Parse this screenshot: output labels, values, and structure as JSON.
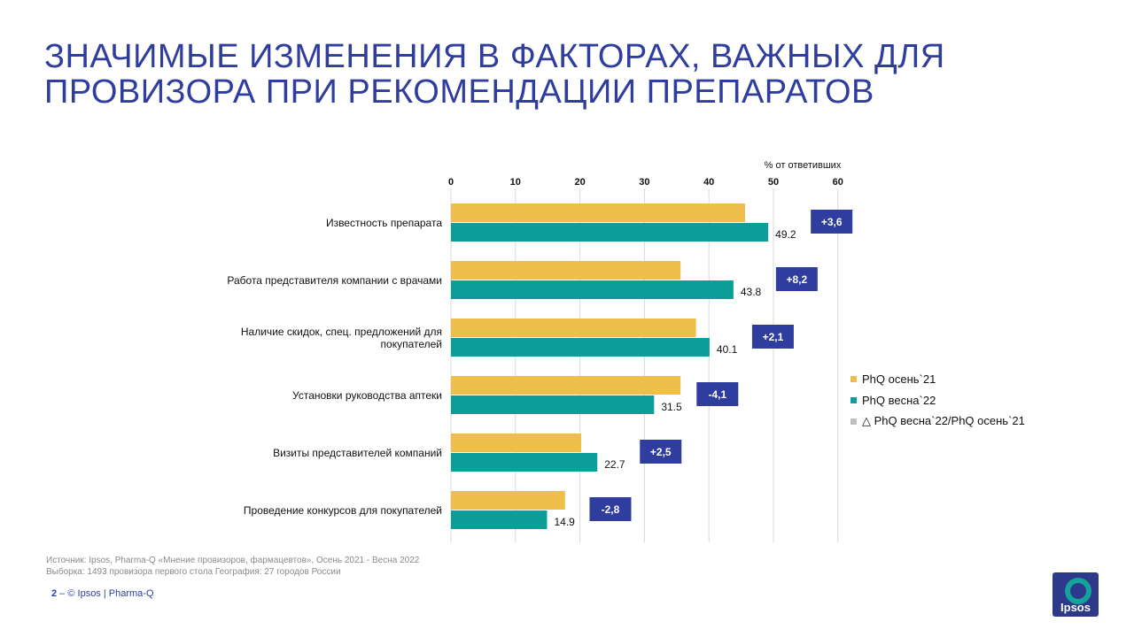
{
  "title_lines": [
    "ЗНАЧИМЫЕ ИЗМЕНЕНИЯ В ФАКТОРАХ, ВАЖНЫХ ДЛЯ",
    "ПРОВИЗОРА ПРИ РЕКОМЕНДАЦИИ ПРЕПАРАТОВ"
  ],
  "colors": {
    "title": "#2f3e9e",
    "autumn21": "#f0be4a",
    "spring22": "#0e9e99",
    "delta": "#2f3e9e",
    "delta_legend": "#bfbfbf"
  },
  "chart_data": {
    "type": "bar",
    "orientation": "horizontal",
    "unit_label": "% от ответивших",
    "xlim": [
      0,
      60
    ],
    "ticks": [
      0,
      10,
      20,
      30,
      40,
      50,
      60
    ],
    "grid": true,
    "legend_position": "right",
    "categories": [
      [
        "Известность препарата"
      ],
      [
        "Работа представителя компании с врачами"
      ],
      [
        "Наличие скидок, спец. предложений для",
        "покупателей"
      ],
      [
        "Установки руководства аптеки"
      ],
      [
        "Визиты представителей компаний"
      ],
      [
        "Проведение конкурсов для покупателей"
      ]
    ],
    "series": [
      {
        "name": "PhQ осень`21",
        "values": [
          45.6,
          35.6,
          38.0,
          35.6,
          20.2,
          17.7
        ]
      },
      {
        "name": "PhQ весна`22",
        "values": [
          49.2,
          43.8,
          40.1,
          31.5,
          22.7,
          14.9
        ],
        "labels": [
          "49.2",
          "43.8",
          "40.1",
          "31.5",
          "22.7",
          "14.9"
        ]
      }
    ],
    "delta": {
      "name": "△ PhQ весна`22/PhQ осень`21",
      "labels": [
        "+3,6",
        "+8,2",
        "+2,1",
        "-4,1",
        "+2,5",
        "-2,8"
      ]
    }
  },
  "footer": {
    "source": "Источник: Ipsos, Pharma-Q «Мнение провизоров, фармацевтов», Осень 2021 - Весна 2022",
    "sample": "Выборка: 1493 провизора первого стола  География: 27 городов России",
    "page_number": "2",
    "page_sep": " –  ",
    "copyright": "© Ipsos | Pharma-Q"
  },
  "logo": {
    "text": "Ipsos"
  }
}
